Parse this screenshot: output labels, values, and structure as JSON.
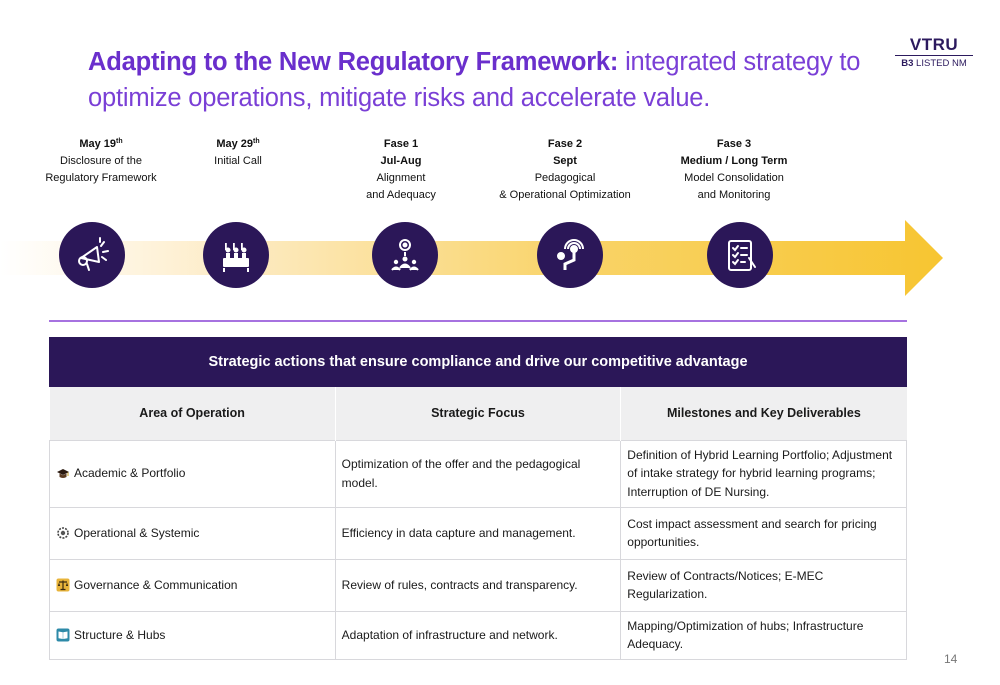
{
  "title": {
    "bold": "Adapting to the New Regulatory Framework:",
    "rest": " integrated strategy to optimize operations, mitigate risks and accelerate value."
  },
  "logo": {
    "main": "VTRU",
    "sub_bold": "B3",
    "sub_rest": " LISTED NM"
  },
  "milestones": [
    {
      "day": "May 19",
      "sup": "th",
      "line1": "Disclosure of the",
      "line2": "Regulatory Framework",
      "icon": "megaphone-icon"
    },
    {
      "day": "May 29",
      "sup": "th",
      "line1": "Initial Call",
      "line2": "",
      "icon": "audience-icon"
    },
    {
      "day": "Fase 1",
      "sub": "Jul-Aug",
      "line1": "Alignment",
      "line2": "and Adequacy",
      "icon": "target-team-icon"
    },
    {
      "day": "Fase 2",
      "sub": "Sept",
      "line1": "Pedagogical",
      "line2": "& Operational Optimization",
      "icon": "touch-screen-icon"
    },
    {
      "day": "Fase 3",
      "sub": "Medium / Long Term",
      "line1": "Model Consolidation",
      "line2": "and Monitoring",
      "icon": "checklist-icon"
    }
  ],
  "table": {
    "banner": "Strategic actions that ensure compliance and drive our competitive advantage",
    "headers": [
      "Area of Operation",
      "Strategic Focus",
      "Milestones and Key Deliverables"
    ],
    "rows": [
      {
        "icon": "graduation-cap-icon",
        "area": "Academic & Portfolio",
        "focus": "Optimization of the offer and the pedagogical model.",
        "deliverables": "Definition of Hybrid Learning Portfolio; Adjustment of intake strategy for hybrid learning programs; Interruption of DE Nursing."
      },
      {
        "icon": "gear-icon",
        "area": "Operational & Systemic",
        "focus": "Efficiency in data capture and management.",
        "deliverables": "Cost impact assessment and search for pricing opportunities."
      },
      {
        "icon": "scales-icon",
        "area": "Governance & Communication",
        "focus": "Review of rules, contracts and transparency.",
        "deliverables": "Review of Contracts/Notices; E-MEC Regularization."
      },
      {
        "icon": "book-icon",
        "area": "Structure & Hubs",
        "focus": "Adaptation of infrastructure and network.",
        "deliverables": "Mapping/Optimization of hubs; Infrastructure Adequacy."
      }
    ]
  },
  "page_number": "14",
  "colors": {
    "title": "#7a3fd6",
    "navy": "#2b1758",
    "arrow": "#f7c531",
    "divider": "#a672e0"
  }
}
